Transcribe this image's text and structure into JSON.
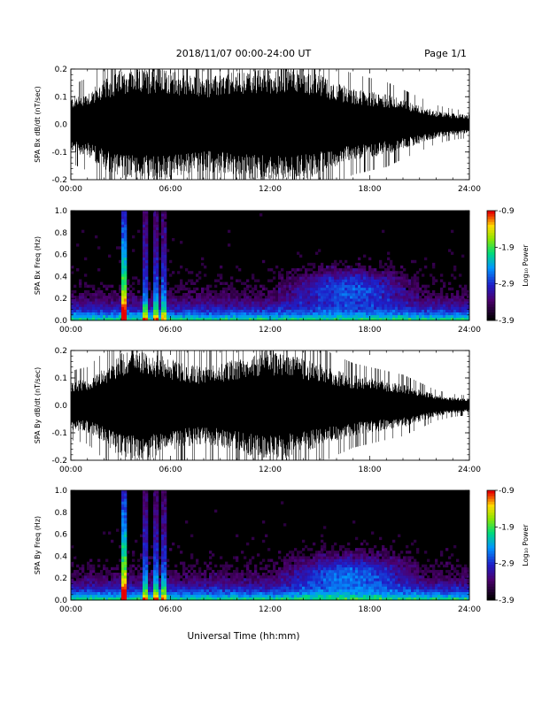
{
  "header": {
    "title": "2018/11/07  00:00-24:00 UT",
    "page": "Page 1/1"
  },
  "x_axis_label": "Universal Time (hh:mm)",
  "chart_data": [
    {
      "type": "line",
      "ylabel": "SPA Bx dB/dt (nT/sec)",
      "xlim": [
        0,
        24
      ],
      "ylim": [
        -0.2,
        0.2
      ],
      "x_ticks": [
        "00:00",
        "06:00",
        "12:00",
        "18:00",
        "24:00"
      ],
      "y_ticks": [
        "-0.2",
        "-0.1",
        "0.0",
        "0.1",
        "0.2"
      ],
      "series": [
        {
          "values": [
            {
              "x": 0,
              "y": 0.1
            },
            {
              "x": 1,
              "y": 0.12
            },
            {
              "x": 2,
              "y": 0.16
            },
            {
              "x": 3,
              "y": 0.2
            },
            {
              "x": 4,
              "y": 0.2
            },
            {
              "x": 5,
              "y": 0.2
            },
            {
              "x": 6,
              "y": 0.2
            },
            {
              "x": 7,
              "y": 0.18
            },
            {
              "x": 8,
              "y": 0.17
            },
            {
              "x": 9,
              "y": 0.18
            },
            {
              "x": 10,
              "y": 0.19
            },
            {
              "x": 11,
              "y": 0.2
            },
            {
              "x": 12,
              "y": 0.2
            },
            {
              "x": 13,
              "y": 0.2
            },
            {
              "x": 14,
              "y": 0.2
            },
            {
              "x": 15,
              "y": 0.18
            },
            {
              "x": 16,
              "y": 0.15
            },
            {
              "x": 17,
              "y": 0.13
            },
            {
              "x": 18,
              "y": 0.12
            },
            {
              "x": 19,
              "y": 0.11
            },
            {
              "x": 20,
              "y": 0.09
            },
            {
              "x": 21,
              "y": 0.07
            },
            {
              "x": 22,
              "y": 0.05
            },
            {
              "x": 23,
              "y": 0.04
            },
            {
              "x": 24,
              "y": 0.035
            }
          ]
        }
      ]
    },
    {
      "type": "heatmap",
      "ylabel": "SPA Bx Freq (Hz)",
      "xlim": [
        0,
        24
      ],
      "ylim": [
        0,
        1.0
      ],
      "x_ticks": [
        "00:00",
        "06:00",
        "12:00",
        "18:00",
        "24:00"
      ],
      "y_ticks": [
        "0.0",
        "0.2",
        "0.4",
        "0.6",
        "0.8",
        "1.0"
      ],
      "colorbar": {
        "label": "Log₁₀ Power",
        "ticks": [
          "-0.9",
          "-1.9",
          "-2.9",
          "-3.9"
        ],
        "range": [
          -3.9,
          -0.9
        ]
      },
      "vertical_bands_hours": [
        3.2,
        4.5,
        5.1,
        5.6
      ],
      "enhancement": {
        "peak_freq_hz": 0.3,
        "hours": [
          12.5,
          21
        ]
      }
    },
    {
      "type": "line",
      "ylabel": "SPA By dB/dt (nT/sec)",
      "xlim": [
        0,
        24
      ],
      "ylim": [
        -0.2,
        0.2
      ],
      "x_ticks": [
        "00:00",
        "06:00",
        "12:00",
        "18:00",
        "24:00"
      ],
      "y_ticks": [
        "-0.2",
        "-0.1",
        "0.0",
        "0.1",
        "0.2"
      ],
      "series": [
        {
          "values": [
            {
              "x": 0,
              "y": 0.09
            },
            {
              "x": 1,
              "y": 0.1
            },
            {
              "x": 2,
              "y": 0.14
            },
            {
              "x": 3,
              "y": 0.19
            },
            {
              "x": 4,
              "y": 0.2
            },
            {
              "x": 5,
              "y": 0.19
            },
            {
              "x": 6,
              "y": 0.17
            },
            {
              "x": 7,
              "y": 0.15
            },
            {
              "x": 8,
              "y": 0.14
            },
            {
              "x": 9,
              "y": 0.15
            },
            {
              "x": 10,
              "y": 0.17
            },
            {
              "x": 11,
              "y": 0.19
            },
            {
              "x": 12,
              "y": 0.2
            },
            {
              "x": 13,
              "y": 0.19
            },
            {
              "x": 14,
              "y": 0.17
            },
            {
              "x": 15,
              "y": 0.15
            },
            {
              "x": 16,
              "y": 0.13
            },
            {
              "x": 17,
              "y": 0.11
            },
            {
              "x": 18,
              "y": 0.1
            },
            {
              "x": 19,
              "y": 0.09
            },
            {
              "x": 20,
              "y": 0.08
            },
            {
              "x": 21,
              "y": 0.06
            },
            {
              "x": 22,
              "y": 0.04
            },
            {
              "x": 23,
              "y": 0.03
            },
            {
              "x": 24,
              "y": 0.025
            }
          ]
        }
      ]
    },
    {
      "type": "heatmap",
      "ylabel": "SPA By Freq (Hz)",
      "xlim": [
        0,
        24
      ],
      "ylim": [
        0,
        1.0
      ],
      "x_ticks": [
        "00:00",
        "06:00",
        "12:00",
        "18:00",
        "24:00"
      ],
      "y_ticks": [
        "0.0",
        "0.2",
        "0.4",
        "0.6",
        "0.8",
        "1.0"
      ],
      "colorbar": {
        "label": "Log₁₀ Power",
        "ticks": [
          "-0.9",
          "-1.9",
          "-2.9",
          "-3.9"
        ],
        "range": [
          -3.9,
          -0.9
        ]
      },
      "vertical_bands_hours": [
        3.2,
        4.5,
        5.1,
        5.6
      ],
      "enhancement": {
        "peak_freq_hz": 0.25,
        "hours": [
          12.5,
          21
        ]
      }
    }
  ]
}
